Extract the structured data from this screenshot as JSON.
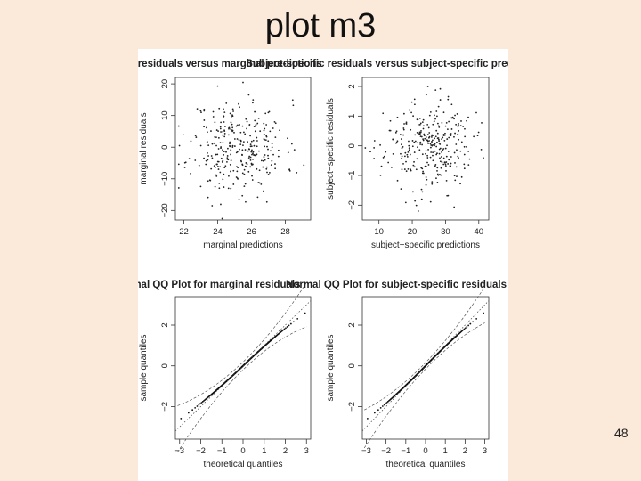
{
  "slide": {
    "title": "plot m3",
    "page_number": "48"
  },
  "chart_data": [
    {
      "type": "scatter",
      "title": "Marginal residuals versus marginal predictions",
      "xlabel": "marginal predictions",
      "ylabel": "marginal residuals",
      "xlim": [
        21.5,
        29.5
      ],
      "ylim": [
        -23,
        22
      ],
      "xticks": [
        22,
        24,
        26,
        28
      ],
      "yticks": [
        -20,
        -10,
        0,
        10,
        20
      ],
      "seed": 11,
      "n": 320,
      "x_center": 25.2,
      "x_sd": 1.4,
      "y_sd": 7.5
    },
    {
      "type": "scatter",
      "title": "Subject-specific residuals versus subject-specific predictions",
      "xlabel": "subject-specific predictions",
      "ylabel": "subject-specific residuals",
      "xlim": [
        5,
        43
      ],
      "ylim": [
        -2.5,
        2.3
      ],
      "xticks": [
        10,
        20,
        30,
        40
      ],
      "yticks": [
        -2,
        -1,
        0,
        1,
        2
      ],
      "seed": 23,
      "n": 320,
      "x_center": 25,
      "x_sd": 6.5,
      "y_sd": 0.75
    },
    {
      "type": "qq",
      "title": "Normal QQ Plot for marginal residuals",
      "xlabel": "theoretical quantiles",
      "ylabel": "sample quantiles",
      "xlim": [
        -3.2,
        3.2
      ],
      "ylim": [
        -3.6,
        3.4
      ],
      "xticks": [
        -3,
        -2,
        -1,
        0,
        1,
        2,
        3
      ],
      "yticks": [
        -2,
        0,
        2
      ],
      "n": 300,
      "envelope_spread": 0.55
    },
    {
      "type": "qq",
      "title": "Normal QQ Plot for subject-specific residuals",
      "xlabel": "theoretical quantiles",
      "ylabel": "sample quantiles",
      "xlim": [
        -3.2,
        3.2
      ],
      "ylim": [
        -3.6,
        3.4
      ],
      "xticks": [
        -3,
        -2,
        -1,
        0,
        1,
        2,
        3
      ],
      "yticks": [
        -2,
        0,
        2
      ],
      "n": 300,
      "envelope_spread": 0.45
    }
  ]
}
